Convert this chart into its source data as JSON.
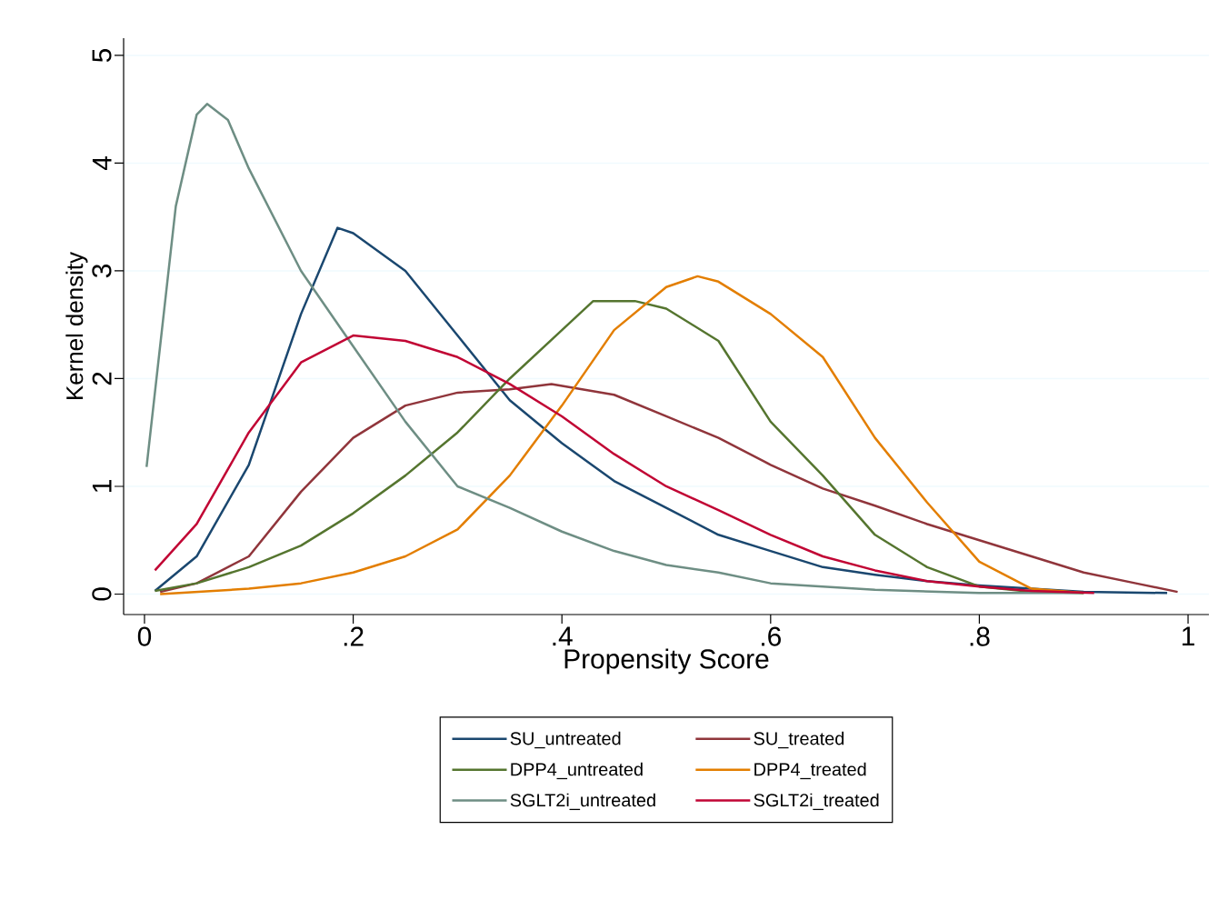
{
  "chart_data": {
    "type": "line",
    "xlabel": "Propensity Score",
    "ylabel": "Kernel density",
    "xlim": [
      -0.02,
      1.02
    ],
    "ylim": [
      -0.19,
      5.16
    ],
    "xticks": [
      0,
      {
        "value": 0.2,
        "label": ".2"
      },
      {
        "value": 0.4,
        "label": ".4"
      },
      {
        "value": 0.6,
        "label": ".6"
      },
      {
        "value": 0.8,
        "label": ".8"
      },
      1
    ],
    "yticks": [
      0,
      1,
      2,
      3,
      4,
      5
    ],
    "grid": "y",
    "legend": "bottom",
    "series": [
      {
        "name": "SU_untreated",
        "color": "#1a476f",
        "x": [
          0.01,
          0.05,
          0.1,
          0.15,
          0.185,
          0.2,
          0.25,
          0.3,
          0.35,
          0.4,
          0.45,
          0.5,
          0.55,
          0.6,
          0.65,
          0.7,
          0.75,
          0.8,
          0.85,
          0.9,
          0.98
        ],
        "values": [
          0.03,
          0.35,
          1.2,
          2.6,
          3.4,
          3.35,
          3.0,
          2.4,
          1.8,
          1.4,
          1.05,
          0.8,
          0.55,
          0.4,
          0.25,
          0.18,
          0.12,
          0.08,
          0.05,
          0.02,
          0.01
        ]
      },
      {
        "name": "SU_treated",
        "color": "#90353b",
        "x": [
          0.015,
          0.05,
          0.1,
          0.15,
          0.2,
          0.25,
          0.3,
          0.35,
          0.39,
          0.45,
          0.5,
          0.55,
          0.6,
          0.65,
          0.7,
          0.75,
          0.8,
          0.85,
          0.9,
          0.95,
          0.99
        ],
        "values": [
          0.02,
          0.1,
          0.35,
          0.95,
          1.45,
          1.75,
          1.87,
          1.9,
          1.95,
          1.85,
          1.65,
          1.45,
          1.2,
          0.98,
          0.82,
          0.65,
          0.5,
          0.35,
          0.2,
          0.1,
          0.02
        ]
      },
      {
        "name": "DPP4_untreated",
        "color": "#55752f",
        "x": [
          0.01,
          0.05,
          0.1,
          0.15,
          0.2,
          0.25,
          0.3,
          0.35,
          0.4,
          0.43,
          0.47,
          0.5,
          0.55,
          0.6,
          0.65,
          0.7,
          0.75,
          0.8,
          0.85,
          0.9
        ],
        "values": [
          0.03,
          0.1,
          0.25,
          0.45,
          0.75,
          1.1,
          1.5,
          2.0,
          2.45,
          2.72,
          2.72,
          2.65,
          2.35,
          1.6,
          1.1,
          0.55,
          0.25,
          0.07,
          0.02,
          0.01
        ]
      },
      {
        "name": "DPP4_treated",
        "color": "#e37e00",
        "x": [
          0.015,
          0.1,
          0.15,
          0.2,
          0.25,
          0.3,
          0.35,
          0.4,
          0.45,
          0.5,
          0.53,
          0.55,
          0.6,
          0.65,
          0.7,
          0.75,
          0.8,
          0.85,
          0.9
        ],
        "values": [
          0.0,
          0.05,
          0.1,
          0.2,
          0.35,
          0.6,
          1.1,
          1.75,
          2.45,
          2.85,
          2.95,
          2.9,
          2.6,
          2.2,
          1.45,
          0.85,
          0.3,
          0.05,
          0.01
        ]
      },
      {
        "name": "SGLT2i_untreated",
        "color": "#6e8e84",
        "x": [
          0.002,
          0.03,
          0.05,
          0.06,
          0.08,
          0.1,
          0.15,
          0.2,
          0.25,
          0.3,
          0.35,
          0.4,
          0.45,
          0.5,
          0.55,
          0.6,
          0.65,
          0.7,
          0.8,
          0.9
        ],
        "values": [
          1.18,
          3.6,
          4.45,
          4.55,
          4.4,
          3.95,
          3.0,
          2.3,
          1.6,
          1.0,
          0.8,
          0.58,
          0.4,
          0.27,
          0.2,
          0.1,
          0.07,
          0.04,
          0.01,
          0.01
        ]
      },
      {
        "name": "SGLT2i_treated",
        "color": "#c10534",
        "x": [
          0.01,
          0.05,
          0.1,
          0.15,
          0.2,
          0.25,
          0.3,
          0.35,
          0.4,
          0.45,
          0.5,
          0.55,
          0.6,
          0.65,
          0.7,
          0.75,
          0.8,
          0.85,
          0.91
        ],
        "values": [
          0.22,
          0.65,
          1.5,
          2.15,
          2.4,
          2.35,
          2.2,
          1.95,
          1.65,
          1.3,
          1.0,
          0.78,
          0.55,
          0.35,
          0.22,
          0.12,
          0.07,
          0.03,
          0.01
        ]
      }
    ]
  }
}
